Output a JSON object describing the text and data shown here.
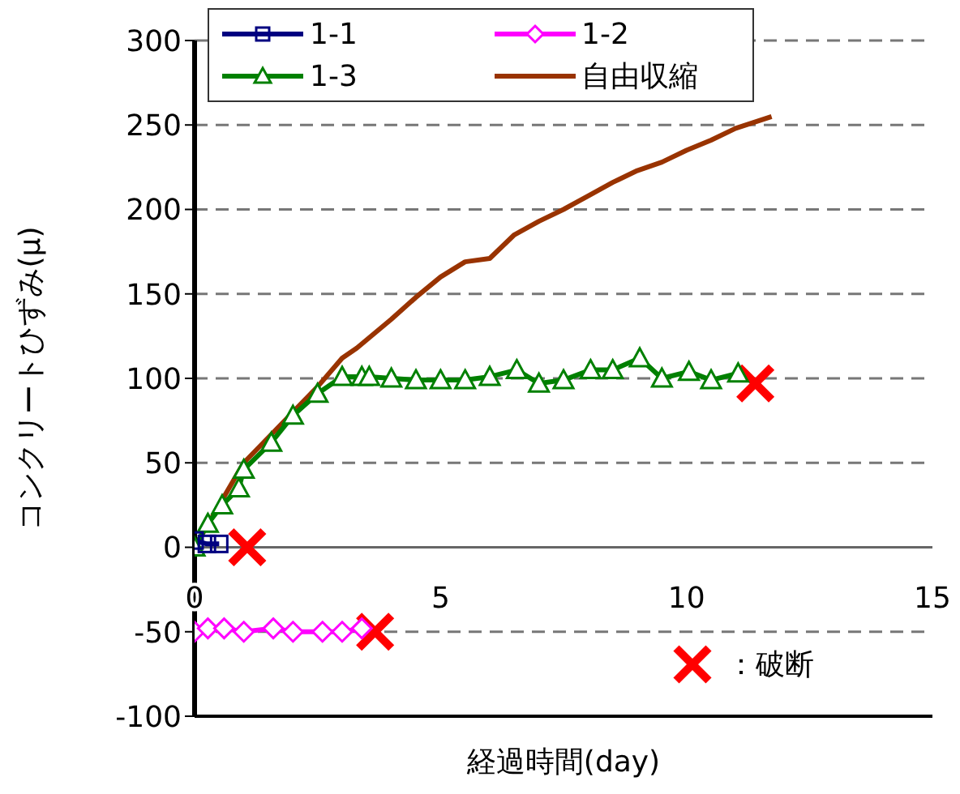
{
  "chart_data": {
    "type": "line",
    "xlabel": "経過時間(day)",
    "ylabel": "コンクリートひずみ(μ)",
    "xlim": [
      0,
      15
    ],
    "xticks": [
      0,
      5,
      10,
      15
    ],
    "ylim": [
      -100,
      300
    ],
    "yticks": [
      -100,
      -50,
      0,
      50,
      100,
      150,
      200,
      250,
      300
    ],
    "grid": "y",
    "legend": "top left",
    "series": [
      {
        "name": "1-1",
        "color": "#000080",
        "marker": "square",
        "x": [
          0,
          0.25,
          0.5
        ],
        "values": [
          4,
          2,
          2
        ]
      },
      {
        "name": "1-2",
        "color": "#ff00ff",
        "marker": "diamond",
        "x": [
          0,
          0.27,
          0.6,
          1,
          1.6,
          2,
          2.6,
          3,
          3.4
        ],
        "values": [
          -50,
          -48,
          -48,
          -50,
          -48,
          -50,
          -50,
          -50,
          -48
        ]
      },
      {
        "name": "1-3",
        "color": "#008000",
        "marker": "triangle",
        "x": [
          0,
          0.27,
          0.56,
          0.9,
          1,
          1.56,
          2,
          2.5,
          3,
          3.4,
          3.55,
          4,
          4.5,
          5,
          5.5,
          6,
          6.55,
          7,
          7.5,
          8.05,
          8.5,
          9.05,
          9.5,
          10.05,
          10.5,
          11.05
        ],
        "values": [
          0,
          14,
          25,
          35,
          46,
          62,
          78,
          91,
          101,
          101,
          101,
          100,
          99,
          99,
          99,
          101,
          105,
          97,
          99,
          105,
          105,
          112,
          100,
          104,
          99,
          103
        ]
      },
      {
        "name": "自由収縮",
        "color": "#993300",
        "marker": "none",
        "x": [
          0,
          0.5,
          1,
          1.5,
          2,
          2.5,
          3,
          3.3,
          4,
          4.5,
          5,
          5.5,
          6,
          6.5,
          7,
          7.5,
          8,
          8.5,
          9,
          9.5,
          10,
          10.5,
          11,
          11.73
        ],
        "values": [
          0,
          25,
          50,
          65,
          80,
          95,
          112,
          118,
          135,
          148,
          160,
          169,
          171,
          185,
          193,
          200,
          208,
          216,
          223,
          228,
          235,
          241,
          248,
          255
        ]
      },
      {
        "name": "：破断",
        "type": "scatter",
        "color": "#ff0000",
        "marker": "cross",
        "x": [
          1.07,
          3.67,
          11.4
        ],
        "values": [
          0,
          -50,
          97
        ]
      }
    ]
  }
}
